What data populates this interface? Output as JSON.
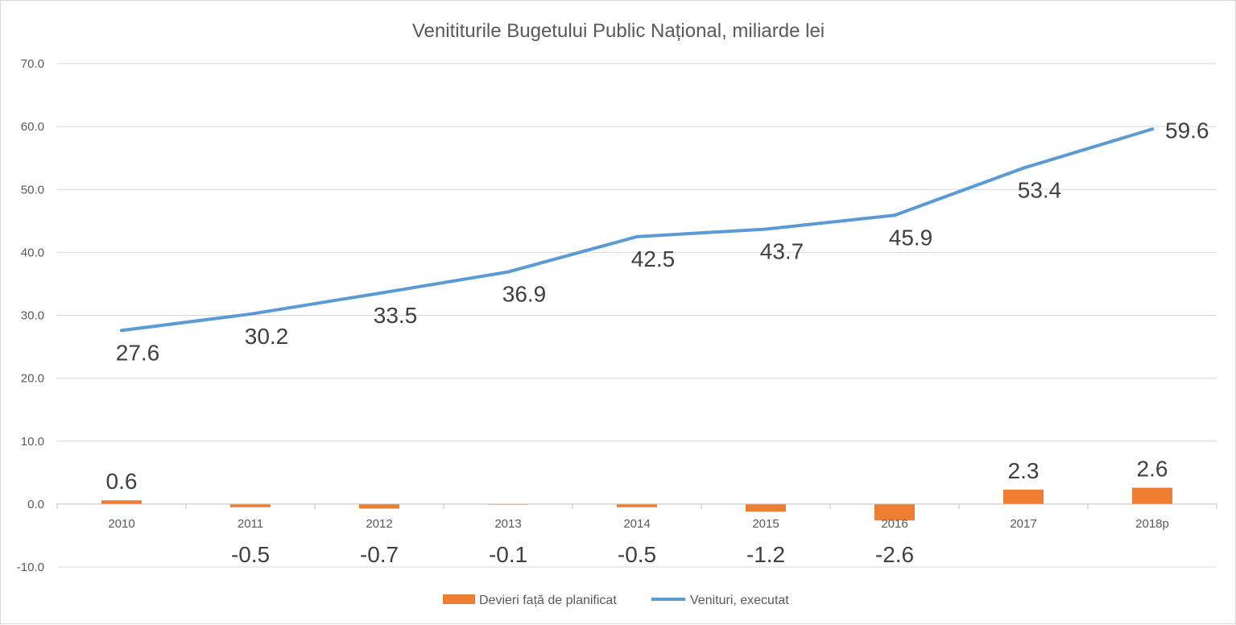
{
  "chart_data": {
    "type": "bar",
    "title": "Venititurile Bugetului Public Național, miliarde lei",
    "categories": [
      "2010",
      "2011",
      "2012",
      "2013",
      "2014",
      "2015",
      "2016",
      "2017",
      "2018p"
    ],
    "ylim": [
      -10,
      70
    ],
    "yticks": [
      "-10.0",
      "0.0",
      "10.0",
      "20.0",
      "30.0",
      "40.0",
      "50.0",
      "60.0",
      "70.0"
    ],
    "grid": true,
    "legend_position": "bottom",
    "series": [
      {
        "name": "Devieri față de planificat",
        "type": "bar",
        "color": "#ed7d31",
        "values": [
          0.6,
          -0.5,
          -0.7,
          -0.1,
          -0.5,
          -1.2,
          -2.6,
          2.3,
          2.6
        ],
        "labels": [
          "0.6",
          "-0.5",
          "-0.7",
          "-0.1",
          "-0.5",
          "-1.2",
          "-2.6",
          "2.3",
          "2.6"
        ]
      },
      {
        "name": "Venituri, executat",
        "type": "line",
        "color": "#5b9bd5",
        "values": [
          27.6,
          30.2,
          33.5,
          36.9,
          42.5,
          43.7,
          45.9,
          53.4,
          59.6
        ],
        "labels": [
          "27.6",
          "30.2",
          "33.5",
          "36.9",
          "42.5",
          "43.7",
          "45.9",
          "53.4",
          "59.6"
        ]
      }
    ]
  }
}
